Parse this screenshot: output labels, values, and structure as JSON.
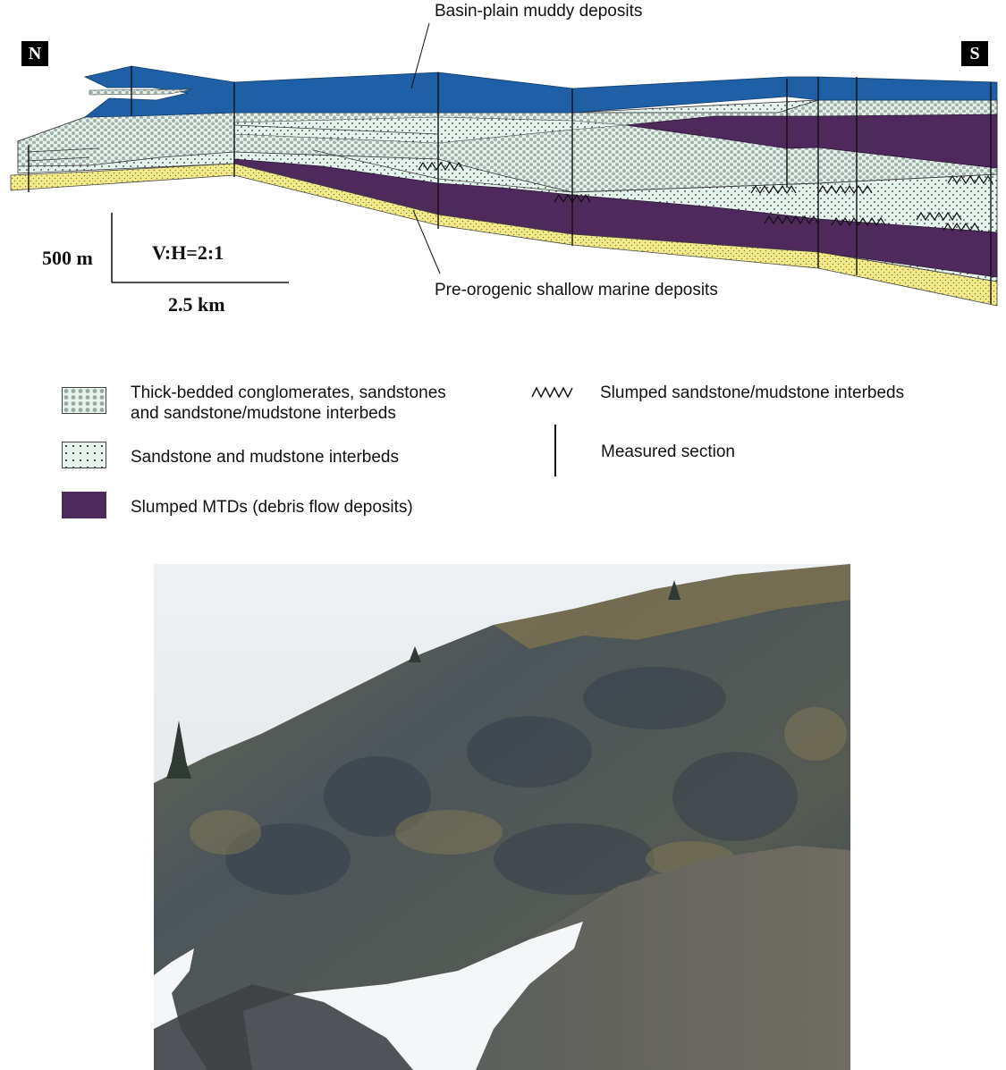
{
  "orientation": {
    "north": "N",
    "south": "S"
  },
  "callouts": {
    "top": "Basin-plain muddy deposits",
    "bottom": "Pre-orogenic shallow marine deposits"
  },
  "scale": {
    "vertical": "500 m",
    "ratio": "V:H=2:1",
    "horizontal": "2.5 km"
  },
  "legend": [
    {
      "key": "conglomerates",
      "lines": [
        "Thick-bedded conglomerates, sandstones",
        "and sandstone/mudstone interbeds"
      ]
    },
    {
      "key": "sand-mud",
      "lines": [
        "Sandstone and mudstone interbeds"
      ]
    },
    {
      "key": "mtd",
      "lines": [
        "Slumped MTDs (debris flow deposits)"
      ]
    },
    {
      "key": "slumped-interbeds",
      "lines": [
        "Slumped sandstone/mudstone interbeds"
      ]
    },
    {
      "key": "measured-section",
      "lines": [
        "Measured section"
      ]
    }
  ],
  "colors": {
    "basin_plain": "#1f5fa6",
    "mtd": "#4e2a5c",
    "shallow_marine": "#f4ec8c",
    "sand_mud": "#e4f3ec",
    "conglomerate": "#e6f2ec",
    "snow": "#f4f6f8",
    "rock": "#4a5258",
    "sky": "#e9edf0"
  },
  "photo": {
    "subject": "outcrop-photo"
  }
}
